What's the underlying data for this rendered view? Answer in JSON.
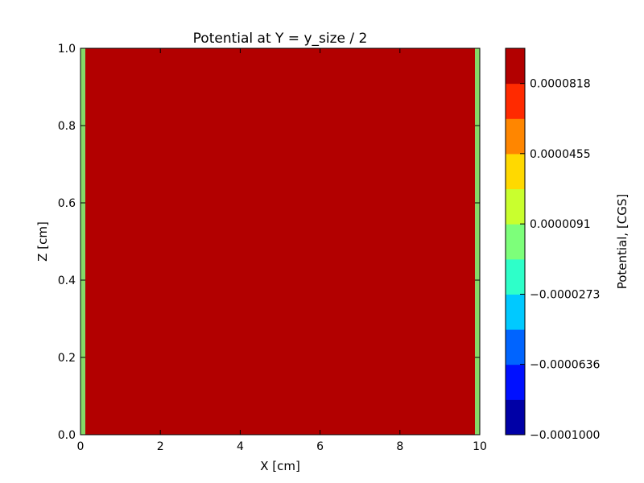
{
  "chart_data": {
    "type": "heatmap",
    "subtype": "filled-contour",
    "title": "Potential at Y = y_size / 2",
    "xlabel": "X [cm]",
    "ylabel": "Z [cm]",
    "colorbar_label": "Potential, [CGS]",
    "xlim": [
      0,
      10
    ],
    "ylim": [
      0,
      1
    ],
    "x_ticks": [
      {
        "value": 0,
        "label": "0"
      },
      {
        "value": 2,
        "label": "2"
      },
      {
        "value": 4,
        "label": "4"
      },
      {
        "value": 6,
        "label": "6"
      },
      {
        "value": 8,
        "label": "8"
      },
      {
        "value": 10,
        "label": "10"
      }
    ],
    "y_ticks": [
      {
        "value": 0.0,
        "label": "0.0"
      },
      {
        "value": 0.2,
        "label": "0.2"
      },
      {
        "value": 0.4,
        "label": "0.4"
      },
      {
        "value": 0.6,
        "label": "0.6"
      },
      {
        "value": 0.8,
        "label": "0.8"
      },
      {
        "value": 1.0,
        "label": "1.0"
      }
    ],
    "colorbar_range": [
      -0.0001,
      0.0001
    ],
    "colorbar_ticks": [
      {
        "value": -0.0001,
        "label": "−0.0001000"
      },
      {
        "value": -6.36e-05,
        "label": "−0.0000636"
      },
      {
        "value": -2.73e-05,
        "label": "−0.0000273"
      },
      {
        "value": 9.1e-06,
        "label": "0.0000091"
      },
      {
        "value": 4.55e-05,
        "label": "0.0000455"
      },
      {
        "value": 8.18e-05,
        "label": "0.0000818"
      }
    ],
    "levels": [
      {
        "z": [
          0.0,
          0.09
        ],
        "color": "#b20000"
      },
      {
        "z": [
          0.09,
          0.18
        ],
        "color": "#ff2a00"
      },
      {
        "z": [
          0.18,
          0.27
        ],
        "color": "#ff8600"
      },
      {
        "z": [
          0.27,
          0.36
        ],
        "color": "#ffd900"
      },
      {
        "z": [
          0.36,
          0.45
        ],
        "color": "#c9ff2e"
      },
      {
        "z": [
          0.45,
          0.55
        ],
        "color": "#7dff7a"
      },
      {
        "z": [
          0.55,
          0.64
        ],
        "color": "#2effc9"
      },
      {
        "z": [
          0.64,
          0.73
        ],
        "color": "#00c9ff"
      },
      {
        "z": [
          0.73,
          0.82
        ],
        "color": "#0064ff"
      },
      {
        "z": [
          0.82,
          0.91
        ],
        "color": "#0010ff"
      },
      {
        "z": [
          0.91,
          1.0
        ],
        "color": "#0000a6"
      }
    ],
    "colorbar_colors": [
      "#0000a6",
      "#0010ff",
      "#0064ff",
      "#00c9ff",
      "#2effc9",
      "#7dff7a",
      "#c9ff2e",
      "#ffd900",
      "#ff8600",
      "#ff2a00",
      "#b20000"
    ],
    "grid": false,
    "legend": "colorbar-right"
  }
}
